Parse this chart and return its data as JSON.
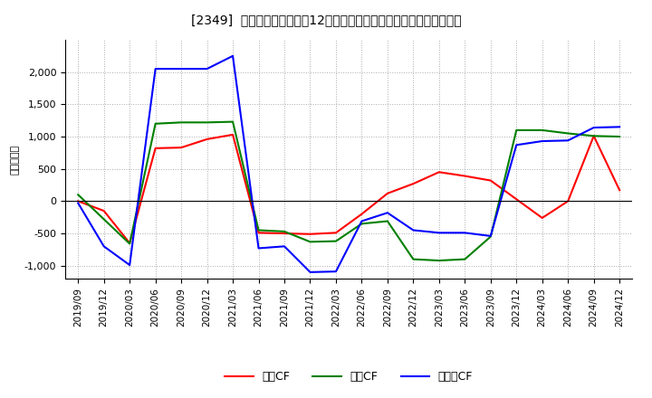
{
  "title": "[2349]  キャッシュフローの12か月移動合計の対前年同期増減額の推移",
  "ylabel": "（百万円）",
  "background_color": "#ffffff",
  "plot_background_color": "#ffffff",
  "grid_color": "#aaaaaa",
  "ylim": [
    -1200,
    2500
  ],
  "yticks": [
    -1000,
    -500,
    0,
    500,
    1000,
    1500,
    2000
  ],
  "x_labels": [
    "2019/09",
    "2019/12",
    "2020/03",
    "2020/06",
    "2020/09",
    "2020/12",
    "2021/03",
    "2021/06",
    "2021/09",
    "2021/12",
    "2022/03",
    "2022/06",
    "2022/09",
    "2022/12",
    "2023/03",
    "2023/06",
    "2023/09",
    "2023/12",
    "2024/03",
    "2024/06",
    "2024/09",
    "2024/12"
  ],
  "series": {
    "営業CF": {
      "color": "#ff0000",
      "data": [
        0,
        -150,
        -650,
        820,
        830,
        960,
        1030,
        -490,
        -500,
        -510,
        -490,
        -200,
        120,
        270,
        450,
        390,
        320,
        30,
        -260,
        0,
        1010,
        170
      ]
    },
    "投資CF": {
      "color": "#008000",
      "data": [
        100,
        -280,
        -660,
        1200,
        1220,
        1220,
        1230,
        -450,
        -470,
        -630,
        -620,
        -350,
        -310,
        -900,
        -920,
        -900,
        -550,
        1100,
        1100,
        1050,
        1010,
        1000
      ]
    },
    "フリーCF": {
      "color": "#0000ff",
      "data": [
        -30,
        -700,
        -990,
        2050,
        2050,
        2050,
        2250,
        -730,
        -700,
        -1100,
        -1090,
        -310,
        -180,
        -450,
        -490,
        -490,
        -540,
        870,
        930,
        940,
        1140,
        1150
      ]
    }
  },
  "legend_labels": [
    "営業CF",
    "投資CF",
    "フリーCF"
  ],
  "legend_colors": [
    "#ff0000",
    "#008000",
    "#0000ff"
  ]
}
